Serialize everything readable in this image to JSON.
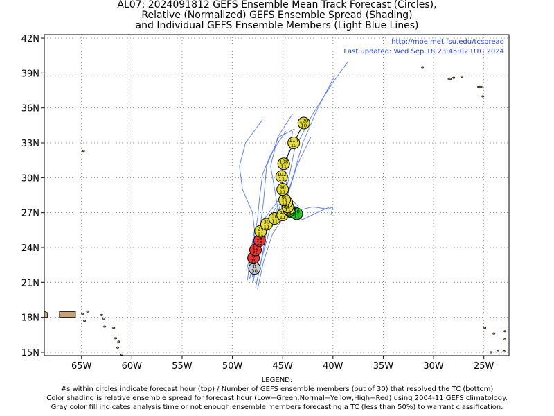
{
  "title": {
    "line1": "AL07: 2024091812 GEFS Ensemble Mean Track Forecast (Circles),",
    "line2": "Relative (Normalized) GEFS Ensemble Spread (Shading)",
    "line3": "and Individual GEFS Ensemble Members (Light Blue Lines)"
  },
  "info": {
    "url": "http://moe.met.fsu.edu/tcspread",
    "updated": "Last updated: Wed Sep 18 23:45:02 UTC 2024"
  },
  "map": {
    "lon_range": [
      -68.7,
      -22.5
    ],
    "lat_range": [
      14.7,
      42.3
    ],
    "lat_ticks": [
      {
        "value": 42,
        "label": "42N"
      },
      {
        "value": 39,
        "label": "39N"
      },
      {
        "value": 36,
        "label": "36N"
      },
      {
        "value": 33,
        "label": "33N"
      },
      {
        "value": 30,
        "label": "30N"
      },
      {
        "value": 27,
        "label": "27N"
      },
      {
        "value": 24,
        "label": "24N"
      },
      {
        "value": 21,
        "label": "21N"
      },
      {
        "value": 18,
        "label": "18N"
      },
      {
        "value": 15,
        "label": "15N"
      }
    ],
    "lon_ticks": [
      {
        "value": -65,
        "label": "65W"
      },
      {
        "value": -60,
        "label": "60W"
      },
      {
        "value": -55,
        "label": "55W"
      },
      {
        "value": -50,
        "label": "50W"
      },
      {
        "value": -45,
        "label": "45W"
      },
      {
        "value": -40,
        "label": "40W"
      },
      {
        "value": -35,
        "label": "35W"
      },
      {
        "value": -30,
        "label": "30W"
      },
      {
        "value": -25,
        "label": "25W"
      }
    ],
    "grid": "dotted",
    "land_color": "#c8a272",
    "member_color": "#5577ff",
    "spread_colors": {
      "gray": "#c8c8c8",
      "green": "#22cc22",
      "yellow": "#e8e030",
      "red": "#ee3333"
    }
  },
  "chart_data": {
    "type": "track",
    "mean_track": [
      {
        "hour": "0",
        "members": "30",
        "lon": -47.8,
        "lat": 22.2,
        "spread": "gray"
      },
      {
        "hour": "6",
        "members": "29",
        "lon": -47.9,
        "lat": 23.1,
        "spread": "red"
      },
      {
        "hour": "12",
        "members": "20",
        "lon": -47.7,
        "lat": 23.8,
        "spread": "red"
      },
      {
        "hour": "18",
        "members": "15",
        "lon": -47.3,
        "lat": 24.6,
        "spread": "red"
      },
      {
        "hour": "24",
        "members": "11",
        "lon": -47.2,
        "lat": 25.4,
        "spread": "yellow"
      },
      {
        "hour": "30",
        "members": "11",
        "lon": -46.6,
        "lat": 26.0,
        "spread": "yellow"
      },
      {
        "hour": "36",
        "members": "11",
        "lon": -45.8,
        "lat": 26.5,
        "spread": "yellow"
      },
      {
        "hour": "42",
        "members": "11",
        "lon": -45.0,
        "lat": 26.8,
        "spread": "yellow"
      },
      {
        "hour": "48",
        "members": "11",
        "lon": -44.2,
        "lat": 27.1,
        "spread": "green"
      },
      {
        "hour": "54",
        "members": "11",
        "lon": -43.8,
        "lat": 27.0,
        "spread": "green"
      },
      {
        "hour": "60",
        "members": "11",
        "lon": -43.6,
        "lat": 26.9,
        "spread": "green"
      },
      {
        "hour": "66",
        "members": "11",
        "lon": -44.3,
        "lat": 27.2,
        "spread": "green"
      },
      {
        "hour": "72",
        "members": "11",
        "lon": -44.4,
        "lat": 27.3,
        "spread": "yellow"
      },
      {
        "hour": "78",
        "members": "11",
        "lon": -44.5,
        "lat": 27.5,
        "spread": "yellow"
      },
      {
        "hour": "84",
        "members": "11",
        "lon": -44.6,
        "lat": 27.9,
        "spread": "yellow"
      },
      {
        "hour": "90",
        "members": "11",
        "lon": -44.8,
        "lat": 28.1,
        "spread": "yellow"
      },
      {
        "hour": "96",
        "members": "11",
        "lon": -45.0,
        "lat": 29.0,
        "spread": "yellow"
      },
      {
        "hour": "102",
        "members": "11",
        "lon": -45.1,
        "lat": 30.1,
        "spread": "yellow"
      },
      {
        "hour": "108",
        "members": "11",
        "lon": -44.9,
        "lat": 31.2,
        "spread": "yellow"
      },
      {
        "hour": "114",
        "members": "10",
        "lon": -43.9,
        "lat": 33.0,
        "spread": "yellow"
      },
      {
        "hour": "120",
        "members": "10",
        "lon": -42.9,
        "lat": 34.7,
        "spread": "yellow"
      }
    ]
  },
  "legend": {
    "heading": "LEGEND:",
    "line1": "#s within circles indicate forecast hour (top) / Number of GEFS ensemble members (out of 30) that resolved the TC (bottom)",
    "line2": "Color shading is relative ensemble spread for forecast hour (Low=Green,Normal=Yellow,High=Red) using 2004-11 GEFS climatology.",
    "line3": "Gray color fill indicates analysis time or not enough ensemble members forecasting a TC (less than 50%) to warrant classification."
  }
}
